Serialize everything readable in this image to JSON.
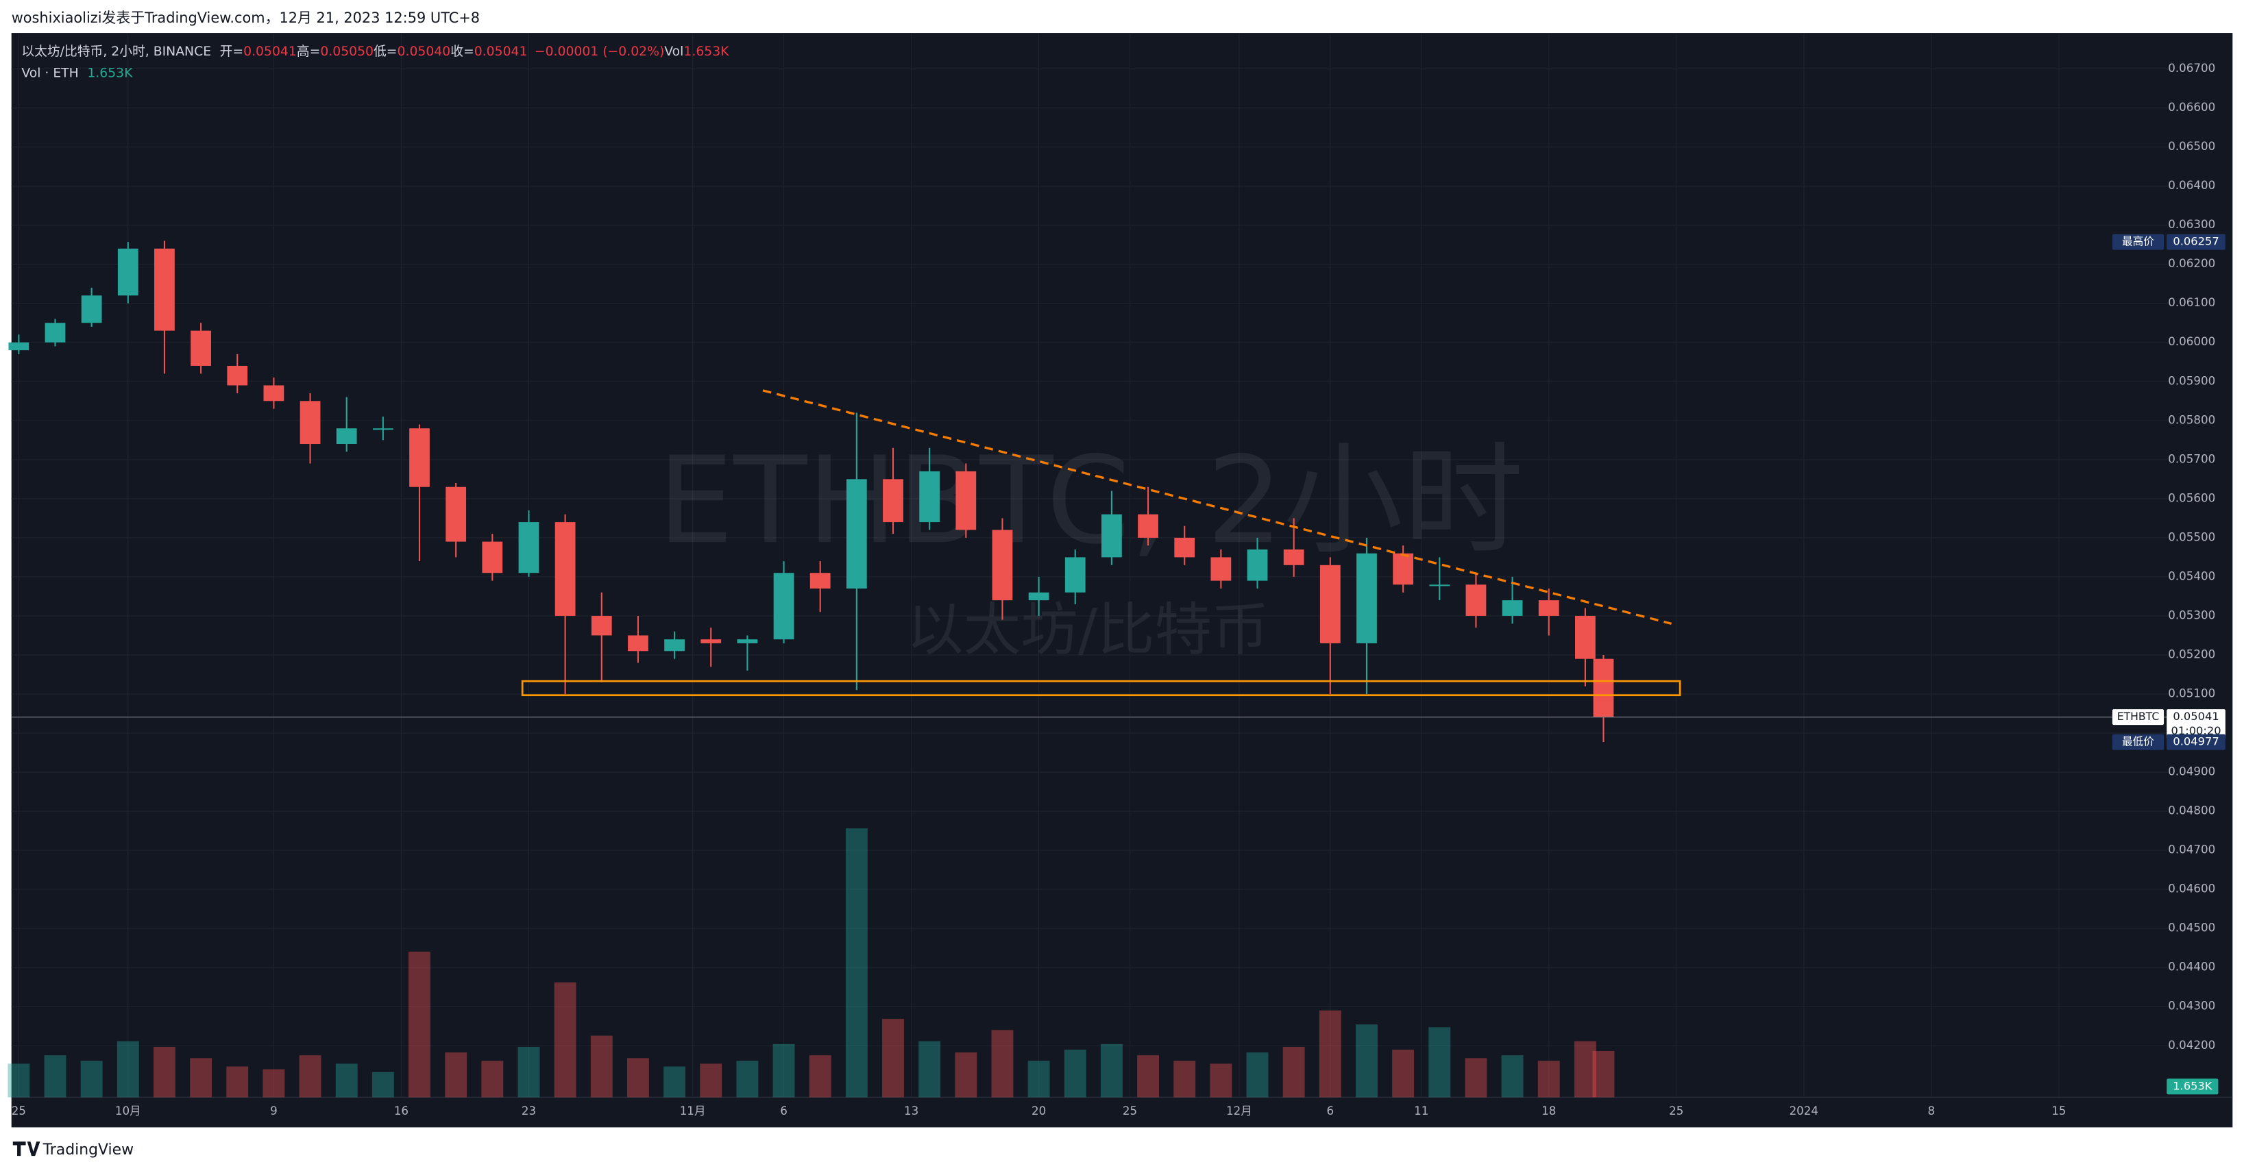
{
  "header": {
    "text": "woshixiaolizi发表于TradingView.com，12月 21, 2023 12:59 UTC+8"
  },
  "footer": {
    "brand": "TradingView"
  },
  "chart_data": {
    "type": "candlestick",
    "watermark": {
      "symbol": "ETHBTC, 2小时",
      "name": "以太坊/比特币"
    },
    "legend": {
      "symbol": "以太坊/比特币, 2小时, BINANCE",
      "fields": [
        {
          "name": "开=",
          "value": "0.05041"
        },
        {
          "name": "高=",
          "value": "0.05050"
        },
        {
          "name": "低=",
          "value": "0.05040"
        },
        {
          "name": "收=",
          "value": "0.05041"
        },
        {
          "name": "",
          "value": "−0.00001 (−0.02%)"
        },
        {
          "name": "Vol",
          "value": "1.653K"
        }
      ],
      "value_color": "#f23645",
      "volume_name": "Vol · ETH",
      "volume_value": "1.653K",
      "volume_color": "#22ab94"
    },
    "up_color": "#26a69a",
    "down_color": "#ef5350",
    "x": [
      0,
      2,
      4,
      6,
      8,
      10,
      12,
      14,
      16,
      18,
      20,
      22,
      24,
      26,
      28,
      30,
      32,
      34,
      36,
      38,
      40,
      42,
      44,
      46,
      48,
      50,
      52,
      54,
      56,
      58,
      60,
      62,
      64,
      66,
      68,
      70,
      72,
      74,
      76,
      78,
      80,
      82,
      84,
      86,
      87
    ],
    "open": [
      0.0598,
      0.06,
      0.0605,
      0.0612,
      0.0624,
      0.0603,
      0.0594,
      0.0589,
      0.0585,
      0.0574,
      0.0578,
      0.0578,
      0.0563,
      0.0549,
      0.0541,
      0.0554,
      0.053,
      0.0525,
      0.0521,
      0.0524,
      0.0523,
      0.0524,
      0.0541,
      0.0537,
      0.0565,
      0.0554,
      0.0567,
      0.0552,
      0.0534,
      0.0536,
      0.0545,
      0.0556,
      0.055,
      0.0545,
      0.0539,
      0.0547,
      0.0543,
      0.0523,
      0.0546,
      0.0538,
      0.0538,
      0.053,
      0.0534,
      0.053,
      0.0519
    ],
    "high": [
      0.0602,
      0.0606,
      0.0614,
      0.06257,
      0.0626,
      0.0605,
      0.0597,
      0.0591,
      0.0587,
      0.0586,
      0.0581,
      0.0579,
      0.0564,
      0.0551,
      0.0557,
      0.0556,
      0.0536,
      0.053,
      0.0526,
      0.0527,
      0.0525,
      0.0544,
      0.0544,
      0.0582,
      0.0573,
      0.0573,
      0.0569,
      0.0555,
      0.054,
      0.0547,
      0.0562,
      0.0563,
      0.0553,
      0.0547,
      0.055,
      0.0555,
      0.0545,
      0.055,
      0.0548,
      0.0545,
      0.0541,
      0.054,
      0.0537,
      0.0532,
      0.052
    ],
    "low": [
      0.0597,
      0.0599,
      0.0604,
      0.061,
      0.0592,
      0.0592,
      0.0587,
      0.0583,
      0.0569,
      0.0572,
      0.0575,
      0.0544,
      0.0545,
      0.0539,
      0.054,
      0.051,
      0.0513,
      0.0518,
      0.0519,
      0.0517,
      0.0516,
      0.0523,
      0.0531,
      0.0511,
      0.0551,
      0.0552,
      0.055,
      0.0529,
      0.053,
      0.0533,
      0.0543,
      0.0548,
      0.0543,
      0.0537,
      0.0537,
      0.054,
      0.051,
      0.051,
      0.0536,
      0.0534,
      0.0527,
      0.0528,
      0.0525,
      0.0512,
      0.04977
    ],
    "close": [
      0.06,
      0.0605,
      0.0612,
      0.0624,
      0.0603,
      0.0594,
      0.0589,
      0.0585,
      0.0574,
      0.0578,
      0.0578,
      0.0563,
      0.0549,
      0.0541,
      0.0554,
      0.053,
      0.0525,
      0.0521,
      0.0524,
      0.0523,
      0.0524,
      0.0541,
      0.0537,
      0.0565,
      0.0554,
      0.0567,
      0.0552,
      0.0534,
      0.0536,
      0.0545,
      0.0556,
      0.055,
      0.0545,
      0.0539,
      0.0547,
      0.0543,
      0.0523,
      0.0546,
      0.0538,
      0.0538,
      0.053,
      0.0534,
      0.053,
      0.0519,
      0.05041
    ],
    "volume": [
      1.2,
      1.5,
      1.3,
      2.0,
      1.8,
      1.4,
      1.1,
      1.0,
      1.5,
      1.2,
      0.9,
      5.2,
      1.6,
      1.3,
      1.8,
      4.1,
      2.2,
      1.4,
      1.1,
      1.2,
      1.3,
      1.9,
      1.5,
      9.6,
      2.8,
      2.0,
      1.6,
      2.4,
      1.3,
      1.7,
      1.9,
      1.5,
      1.3,
      1.2,
      1.6,
      1.8,
      3.1,
      2.6,
      1.7,
      2.5,
      1.4,
      1.5,
      1.3,
      2.0,
      1.653
    ],
    "volume_label": "1.653K",
    "volume_ylim": [
      0,
      38
    ],
    "xlim": [
      -0.4,
      118
    ],
    "xticks": [
      {
        "value": 0,
        "label": "25"
      },
      {
        "value": 6,
        "label": "10月"
      },
      {
        "value": 14,
        "label": "9"
      },
      {
        "value": 21,
        "label": "16"
      },
      {
        "value": 28,
        "label": "23"
      },
      {
        "value": 37,
        "label": "11月"
      },
      {
        "value": 42,
        "label": "6"
      },
      {
        "value": 49,
        "label": "13"
      },
      {
        "value": 56,
        "label": "20"
      },
      {
        "value": 61,
        "label": "25"
      },
      {
        "value": 67,
        "label": "12月"
      },
      {
        "value": 72,
        "label": "6"
      },
      {
        "value": 77,
        "label": "11"
      },
      {
        "value": 84,
        "label": "18"
      },
      {
        "value": 91,
        "label": "25"
      },
      {
        "value": 98,
        "label": "2024"
      },
      {
        "value": 105,
        "label": "8"
      },
      {
        "value": 112,
        "label": "15"
      }
    ],
    "ylim": [
      0.04068,
      0.06792
    ],
    "yticks": [
      {
        "value": 0.067,
        "label": "0.06700"
      },
      {
        "value": 0.066,
        "label": "0.06600"
      },
      {
        "value": 0.065,
        "label": "0.06500"
      },
      {
        "value": 0.064,
        "label": "0.06400"
      },
      {
        "value": 0.063,
        "label": "0.06300"
      },
      {
        "value": 0.062,
        "label": "0.06200"
      },
      {
        "value": 0.061,
        "label": "0.06100"
      },
      {
        "value": 0.06,
        "label": "0.06000"
      },
      {
        "value": 0.059,
        "label": "0.05900"
      },
      {
        "value": 0.058,
        "label": "0.05800"
      },
      {
        "value": 0.057,
        "label": "0.05700"
      },
      {
        "value": 0.056,
        "label": "0.05600"
      },
      {
        "value": 0.055,
        "label": "0.05500"
      },
      {
        "value": 0.054,
        "label": "0.05400"
      },
      {
        "value": 0.053,
        "label": "0.05300"
      },
      {
        "value": 0.052,
        "label": "0.05200"
      },
      {
        "value": 0.051,
        "label": "0.05100"
      },
      {
        "value": 0.05,
        "label": "0.05000"
      },
      {
        "value": 0.049,
        "label": "0.04900"
      },
      {
        "value": 0.048,
        "label": "0.04800"
      },
      {
        "value": 0.047,
        "label": "0.04700"
      },
      {
        "value": 0.046,
        "label": "0.04600"
      },
      {
        "value": 0.045,
        "label": "0.04500"
      },
      {
        "value": 0.044,
        "label": "0.04400"
      },
      {
        "value": 0.043,
        "label": "0.04300"
      },
      {
        "value": 0.042,
        "label": "0.04200"
      }
    ],
    "grid": true,
    "price_tags": [
      {
        "label": "最高价",
        "value": 0.06257,
        "color": "#1e3565"
      },
      {
        "label": "ETHBTC",
        "value": 0.05041,
        "countdown": "01:00:20",
        "color": "#ffffff"
      },
      {
        "label": "最低价",
        "value": 0.04977,
        "color": "#1e3565"
      }
    ],
    "trendline": {
      "x": [
        40.85,
        90.73
      ],
      "y": [
        0.05877,
        0.0528
      ],
      "color": "#f57c00"
    },
    "zone": {
      "x": [
        27.65,
        91.2
      ],
      "y": [
        0.05097,
        0.05133
      ],
      "color": "#ff9800"
    }
  }
}
